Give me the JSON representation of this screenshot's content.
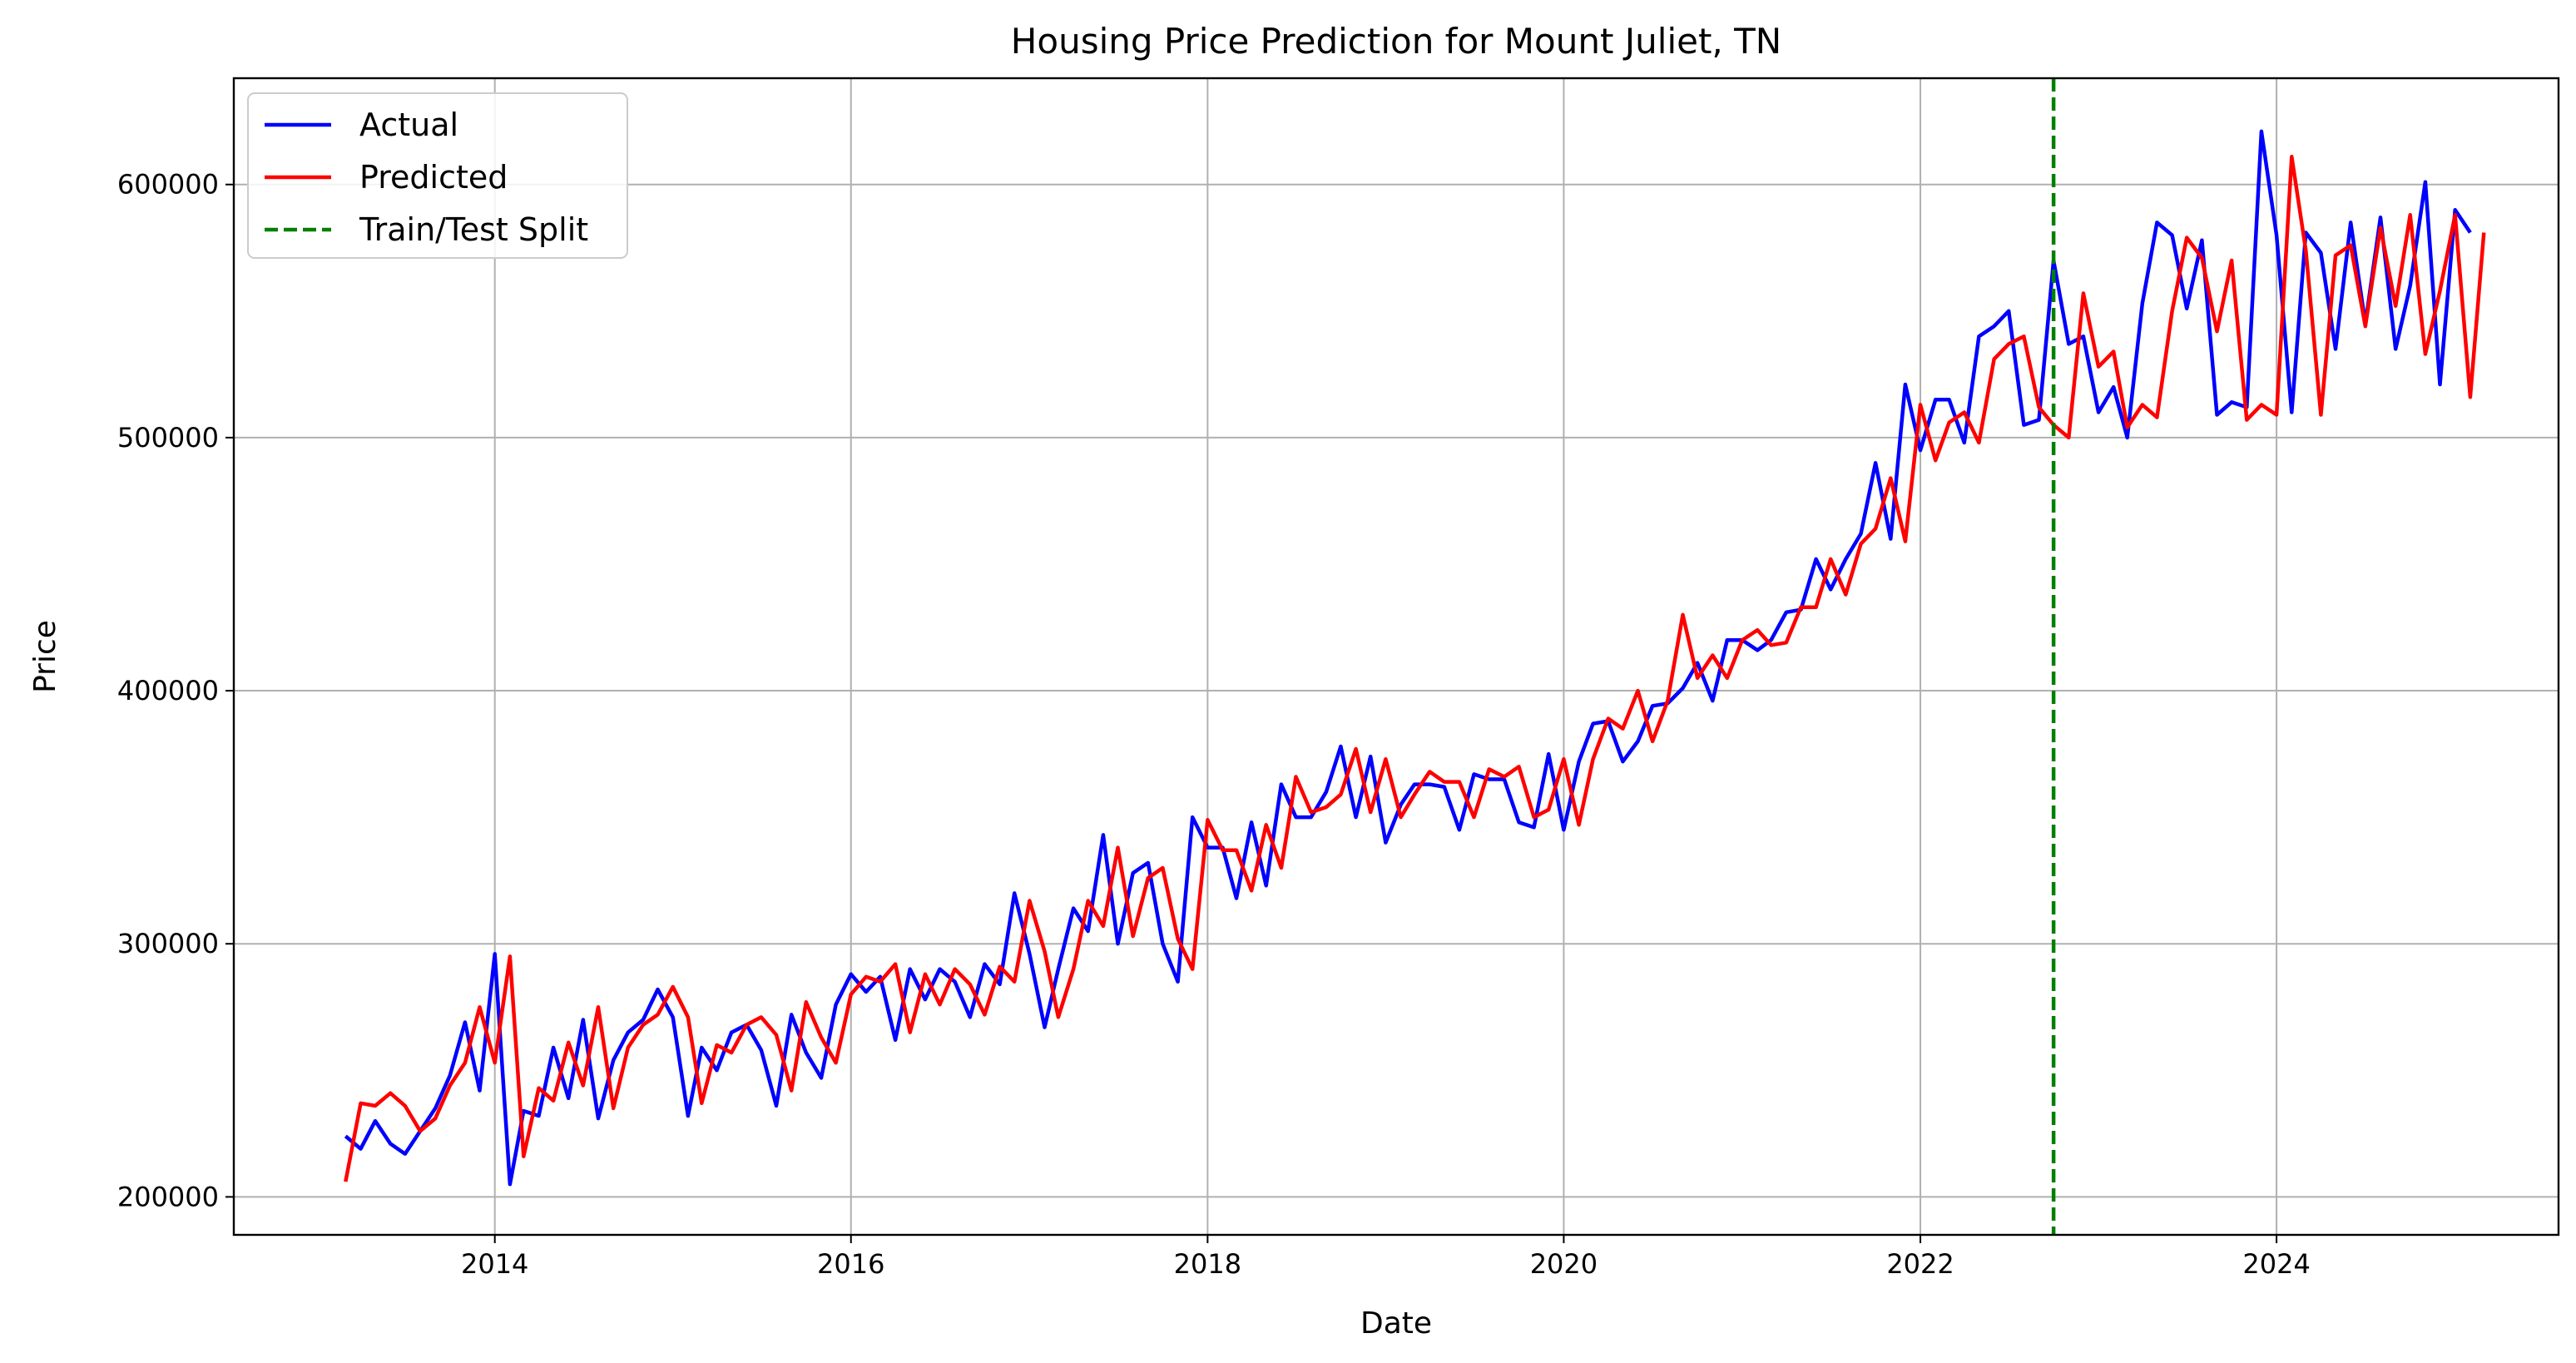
{
  "chart_data": {
    "type": "line",
    "title": "Housing Price Prediction for Mount Juliet, TN",
    "xlabel": "Date",
    "ylabel": "Price",
    "xlim": [
      "2012-07-15",
      "2025-08-01"
    ],
    "ylim": [
      185000,
      642000
    ],
    "x_ticks": [
      "2014-01-01",
      "2016-01-01",
      "2018-01-01",
      "2020-01-01",
      "2022-01-01",
      "2024-01-01"
    ],
    "x_tick_labels": [
      "2014",
      "2016",
      "2018",
      "2020",
      "2022",
      "2024"
    ],
    "y_ticks": [
      200000,
      300000,
      400000,
      500000,
      600000
    ],
    "y_tick_labels": [
      "200000",
      "300000",
      "400000",
      "500000",
      "600000"
    ],
    "grid": true,
    "legend_position": "top-left",
    "start_month": "2013-03",
    "split_date": "2022-10-01",
    "legend": [
      {
        "name": "Actual",
        "color": "#0000ff",
        "style": "solid"
      },
      {
        "name": "Predicted",
        "color": "#ff0000",
        "style": "solid"
      },
      {
        "name": "Train/Test Split",
        "color": "#008000",
        "style": "dashed"
      }
    ],
    "series": [
      {
        "name": "Actual",
        "color": "#0000ff",
        "values": [
          224000,
          219000,
          230000,
          221000,
          217000,
          226000,
          235000,
          248000,
          269000,
          242000,
          296000,
          205000,
          234000,
          232000,
          259000,
          239000,
          270000,
          231000,
          254000,
          265000,
          270000,
          282000,
          271000,
          232000,
          259000,
          250000,
          265000,
          268000,
          258000,
          236000,
          272000,
          257000,
          247000,
          276000,
          288000,
          281000,
          287000,
          262000,
          290000,
          278000,
          290000,
          285000,
          271000,
          292000,
          284000,
          320000,
          296000,
          267000,
          290000,
          314000,
          305000,
          343000,
          300000,
          328000,
          332000,
          300000,
          285000,
          350000,
          338000,
          338000,
          318000,
          348000,
          323000,
          363000,
          350000,
          350000,
          360000,
          378000,
          350000,
          374000,
          340000,
          355000,
          363000,
          363000,
          362000,
          345000,
          367000,
          365000,
          365000,
          348000,
          346000,
          375000,
          345000,
          372000,
          387000,
          388000,
          372000,
          380000,
          394000,
          395000,
          401000,
          411000,
          396000,
          420000,
          420000,
          416000,
          420000,
          431000,
          432000,
          452000,
          440000,
          452000,
          462000,
          490000,
          460000,
          521000,
          495000,
          515000,
          515000,
          498000,
          540000,
          544000,
          550000,
          505000,
          507000,
          570000,
          537000,
          540000,
          510000,
          520000,
          500000,
          553000,
          585000,
          580000,
          551000,
          578000,
          509000,
          514000,
          512000,
          621000,
          580000,
          510000,
          581000,
          573000,
          535000,
          585000,
          545000,
          587000,
          535000,
          560000,
          601000,
          521000,
          590000,
          581000
        ]
      },
      {
        "name": "Predicted",
        "color": "#ff0000",
        "values": [
          206000,
          237000,
          236000,
          241000,
          236000,
          226000,
          231000,
          244000,
          253000,
          275000,
          253000,
          295000,
          216000,
          243000,
          238000,
          261000,
          244000,
          275000,
          235000,
          259000,
          268000,
          272000,
          283000,
          271000,
          237000,
          260000,
          257000,
          268000,
          271000,
          264000,
          242000,
          277000,
          263000,
          253000,
          280000,
          287000,
          285000,
          292000,
          265000,
          288000,
          276000,
          290000,
          284000,
          272000,
          291000,
          285000,
          317000,
          297000,
          271000,
          290000,
          317000,
          307000,
          338000,
          303000,
          326000,
          330000,
          302000,
          290000,
          349000,
          337000,
          337000,
          321000,
          347000,
          330000,
          366000,
          352000,
          354000,
          359000,
          377000,
          352000,
          373000,
          350000,
          359000,
          368000,
          364000,
          364000,
          350000,
          369000,
          366000,
          370000,
          350000,
          353000,
          373000,
          347000,
          373000,
          389000,
          385000,
          400000,
          380000,
          396000,
          430000,
          405000,
          414000,
          405000,
          420000,
          424000,
          418000,
          419000,
          433000,
          433000,
          452000,
          438000,
          458000,
          464000,
          484000,
          459000,
          513000,
          491000,
          506000,
          510000,
          498000,
          531000,
          537000,
          540000,
          512000,
          505000,
          500000,
          557000,
          528000,
          534000,
          504000,
          513000,
          508000,
          550000,
          579000,
          571000,
          542000,
          570000,
          507000,
          513000,
          509000,
          611000,
          574000,
          509000,
          572000,
          576000,
          544000,
          583000,
          552000,
          588000,
          533000,
          558000,
          588000,
          516000,
          581000
        ]
      }
    ]
  }
}
